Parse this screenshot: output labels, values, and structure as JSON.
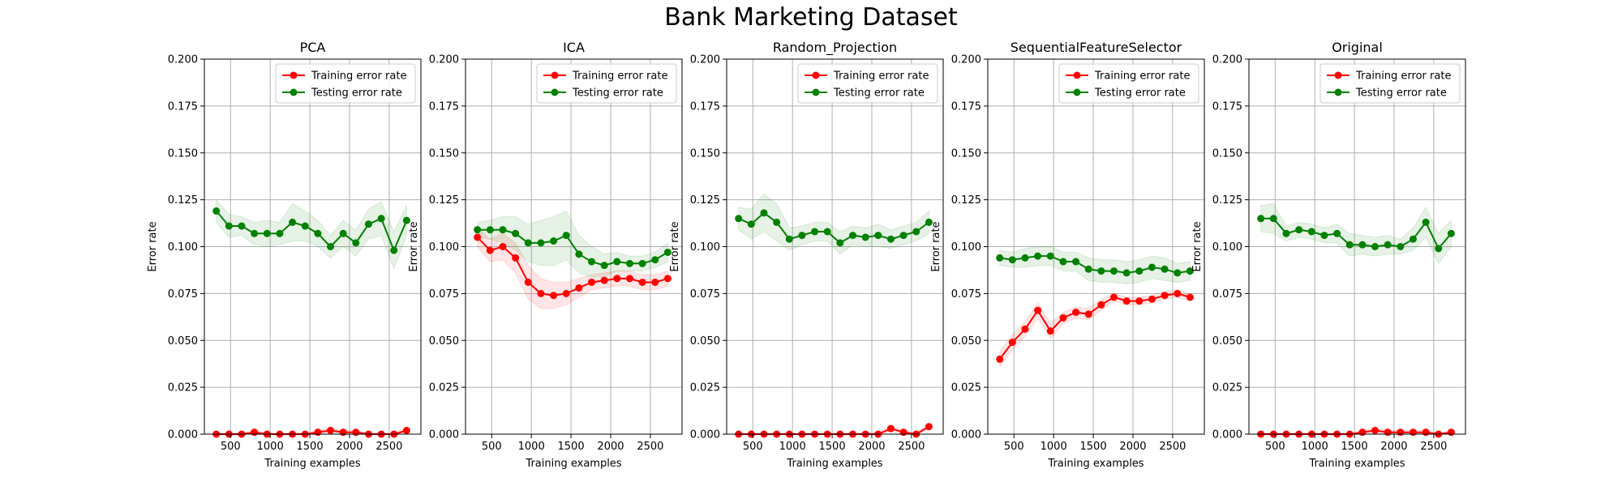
{
  "figure": {
    "title": "Bank Marketing Dataset"
  },
  "colors": {
    "train": "#ff0000",
    "test": "#008000",
    "grid": "#b0b0b0",
    "legend_border": "#cccccc"
  },
  "chart_data": [
    {
      "type": "line",
      "title": "PCA",
      "xlabel": "Training examples",
      "ylabel": "Error rate",
      "xlim": [
        170,
        2900
      ],
      "ylim": [
        0,
        0.2
      ],
      "xticks": [
        500,
        1000,
        1500,
        2000,
        2500
      ],
      "yticks": [
        0.0,
        0.025,
        0.05,
        0.075,
        0.1,
        0.125,
        0.15,
        0.175,
        0.2
      ],
      "ytick_labels": [
        "0.000",
        "0.025",
        "0.050",
        "0.075",
        "0.100",
        "0.125",
        "0.150",
        "0.175",
        "0.200"
      ],
      "grid": true,
      "legend": "upper right",
      "x": [
        320,
        480,
        640,
        800,
        960,
        1120,
        1280,
        1440,
        1600,
        1760,
        1920,
        2080,
        2240,
        2400,
        2560,
        2720
      ],
      "series": [
        {
          "name": "Training error rate",
          "color": "#ff0000",
          "values": [
            0.0,
            0.0,
            0.0,
            0.001,
            0.0,
            0.0,
            0.0,
            0.0,
            0.001,
            0.002,
            0.001,
            0.001,
            0.0,
            0.0,
            0.0,
            0.002
          ],
          "band": [
            0.0008,
            0.0008,
            0.0008,
            0.0012,
            0.0008,
            0.0008,
            0.0008,
            0.0008,
            0.001,
            0.0012,
            0.001,
            0.001,
            0.0008,
            0.0008,
            0.0008,
            0.0012
          ]
        },
        {
          "name": "Testing error rate",
          "color": "#008000",
          "values": [
            0.119,
            0.111,
            0.111,
            0.107,
            0.107,
            0.107,
            0.113,
            0.111,
            0.107,
            0.1,
            0.107,
            0.102,
            0.112,
            0.115,
            0.098,
            0.114
          ],
          "band": [
            0.006,
            0.006,
            0.005,
            0.006,
            0.007,
            0.006,
            0.01,
            0.008,
            0.007,
            0.006,
            0.007,
            0.007,
            0.008,
            0.009,
            0.01,
            0.008
          ]
        }
      ]
    },
    {
      "type": "line",
      "title": "ICA",
      "xlabel": "Training examples",
      "ylabel": "Error rate",
      "xlim": [
        170,
        2900
      ],
      "ylim": [
        0,
        0.2
      ],
      "xticks": [
        500,
        1000,
        1500,
        2000,
        2500
      ],
      "yticks": [
        0.0,
        0.025,
        0.05,
        0.075,
        0.1,
        0.125,
        0.15,
        0.175,
        0.2
      ],
      "ytick_labels": [
        "0.000",
        "0.025",
        "0.050",
        "0.075",
        "0.100",
        "0.125",
        "0.150",
        "0.175",
        "0.200"
      ],
      "grid": true,
      "legend": "upper right",
      "x": [
        320,
        480,
        640,
        800,
        960,
        1120,
        1280,
        1440,
        1600,
        1760,
        1920,
        2080,
        2240,
        2400,
        2560,
        2720
      ],
      "series": [
        {
          "name": "Training error rate",
          "color": "#ff0000",
          "values": [
            0.105,
            0.098,
            0.1,
            0.094,
            0.081,
            0.075,
            0.074,
            0.075,
            0.078,
            0.081,
            0.082,
            0.083,
            0.083,
            0.081,
            0.081,
            0.083
          ],
          "band": [
            0.005,
            0.006,
            0.007,
            0.008,
            0.009,
            0.008,
            0.007,
            0.006,
            0.005,
            0.004,
            0.004,
            0.004,
            0.004,
            0.004,
            0.004,
            0.004
          ]
        },
        {
          "name": "Testing error rate",
          "color": "#008000",
          "values": [
            0.109,
            0.109,
            0.109,
            0.107,
            0.102,
            0.102,
            0.103,
            0.106,
            0.096,
            0.092,
            0.09,
            0.092,
            0.091,
            0.091,
            0.093,
            0.097
          ],
          "band": [
            0.004,
            0.005,
            0.007,
            0.009,
            0.01,
            0.012,
            0.013,
            0.013,
            0.01,
            0.008,
            0.006,
            0.005,
            0.004,
            0.004,
            0.004,
            0.005
          ]
        }
      ]
    },
    {
      "type": "line",
      "title": "Random_Projection",
      "xlabel": "Training examples",
      "ylabel": "Error rate",
      "xlim": [
        170,
        2900
      ],
      "ylim": [
        0,
        0.2
      ],
      "xticks": [
        500,
        1000,
        1500,
        2000,
        2500
      ],
      "yticks": [
        0.0,
        0.025,
        0.05,
        0.075,
        0.1,
        0.125,
        0.15,
        0.175,
        0.2
      ],
      "ytick_labels": [
        "0.000",
        "0.025",
        "0.050",
        "0.075",
        "0.100",
        "0.125",
        "0.150",
        "0.175",
        "0.200"
      ],
      "grid": true,
      "legend": "upper right",
      "x": [
        320,
        480,
        640,
        800,
        960,
        1120,
        1280,
        1440,
        1600,
        1760,
        1920,
        2080,
        2240,
        2400,
        2560,
        2720
      ],
      "series": [
        {
          "name": "Training error rate",
          "color": "#ff0000",
          "values": [
            0.0,
            0.0,
            0.0,
            0.0,
            0.0,
            0.0,
            0.0,
            0.0,
            0.0,
            0.0,
            0.0,
            0.0,
            0.003,
            0.001,
            0.0,
            0.004
          ],
          "band": [
            0.0008,
            0.0008,
            0.0008,
            0.0008,
            0.0008,
            0.0008,
            0.0008,
            0.0008,
            0.0008,
            0.0008,
            0.0008,
            0.0008,
            0.0015,
            0.0008,
            0.0008,
            0.0015
          ]
        },
        {
          "name": "Testing error rate",
          "color": "#008000",
          "values": [
            0.115,
            0.112,
            0.118,
            0.113,
            0.104,
            0.106,
            0.108,
            0.108,
            0.102,
            0.106,
            0.105,
            0.106,
            0.104,
            0.106,
            0.108,
            0.113
          ],
          "band": [
            0.006,
            0.008,
            0.01,
            0.01,
            0.006,
            0.005,
            0.005,
            0.005,
            0.006,
            0.005,
            0.005,
            0.006,
            0.005,
            0.005,
            0.005,
            0.006
          ]
        }
      ]
    },
    {
      "type": "line",
      "title": "SequentialFeatureSelector",
      "xlabel": "Training examples",
      "ylabel": "Error rate",
      "xlim": [
        170,
        2900
      ],
      "ylim": [
        0,
        0.2
      ],
      "xticks": [
        500,
        1000,
        1500,
        2000,
        2500
      ],
      "yticks": [
        0.0,
        0.025,
        0.05,
        0.075,
        0.1,
        0.125,
        0.15,
        0.175,
        0.2
      ],
      "ytick_labels": [
        "0.000",
        "0.025",
        "0.050",
        "0.075",
        "0.100",
        "0.125",
        "0.150",
        "0.175",
        "0.200"
      ],
      "grid": true,
      "legend": "upper right",
      "x": [
        320,
        480,
        640,
        800,
        960,
        1120,
        1280,
        1440,
        1600,
        1760,
        1920,
        2080,
        2240,
        2400,
        2560,
        2720
      ],
      "series": [
        {
          "name": "Training error rate",
          "color": "#ff0000",
          "values": [
            0.04,
            0.049,
            0.056,
            0.066,
            0.055,
            0.062,
            0.065,
            0.064,
            0.069,
            0.073,
            0.071,
            0.071,
            0.072,
            0.074,
            0.075,
            0.073
          ],
          "band": [
            0.004,
            0.004,
            0.004,
            0.004,
            0.004,
            0.003,
            0.003,
            0.003,
            0.003,
            0.002,
            0.002,
            0.002,
            0.002,
            0.002,
            0.002,
            0.002
          ]
        },
        {
          "name": "Testing error rate",
          "color": "#008000",
          "values": [
            0.094,
            0.093,
            0.094,
            0.095,
            0.095,
            0.092,
            0.092,
            0.088,
            0.087,
            0.087,
            0.086,
            0.087,
            0.089,
            0.088,
            0.086,
            0.087
          ],
          "band": [
            0.004,
            0.004,
            0.005,
            0.005,
            0.005,
            0.005,
            0.005,
            0.006,
            0.006,
            0.006,
            0.006,
            0.006,
            0.006,
            0.006,
            0.005,
            0.005
          ]
        }
      ]
    },
    {
      "type": "line",
      "title": "Original",
      "xlabel": "Training examples",
      "ylabel": "Error rate",
      "xlim": [
        170,
        2900
      ],
      "ylim": [
        0,
        0.2
      ],
      "xticks": [
        500,
        1000,
        1500,
        2000,
        2500
      ],
      "yticks": [
        0.0,
        0.025,
        0.05,
        0.075,
        0.1,
        0.125,
        0.15,
        0.175,
        0.2
      ],
      "ytick_labels": [
        "0.000",
        "0.025",
        "0.050",
        "0.075",
        "0.100",
        "0.125",
        "0.150",
        "0.175",
        "0.200"
      ],
      "grid": true,
      "legend": "upper right",
      "x": [
        320,
        480,
        640,
        800,
        960,
        1120,
        1280,
        1440,
        1600,
        1760,
        1920,
        2080,
        2240,
        2400,
        2560,
        2720
      ],
      "series": [
        {
          "name": "Training error rate",
          "color": "#ff0000",
          "values": [
            0.0,
            0.0,
            0.0,
            0.0,
            0.0,
            0.0,
            0.0,
            0.0,
            0.001,
            0.002,
            0.001,
            0.001,
            0.001,
            0.001,
            0.0,
            0.001
          ],
          "band": [
            0.0008,
            0.0008,
            0.0008,
            0.0008,
            0.0008,
            0.0008,
            0.0008,
            0.0008,
            0.001,
            0.0012,
            0.001,
            0.001,
            0.001,
            0.001,
            0.0008,
            0.001
          ]
        },
        {
          "name": "Testing error rate",
          "color": "#008000",
          "values": [
            0.115,
            0.115,
            0.107,
            0.109,
            0.108,
            0.106,
            0.107,
            0.101,
            0.101,
            0.1,
            0.101,
            0.1,
            0.104,
            0.113,
            0.099,
            0.107
          ],
          "band": [
            0.007,
            0.008,
            0.004,
            0.004,
            0.004,
            0.004,
            0.005,
            0.006,
            0.005,
            0.005,
            0.005,
            0.004,
            0.006,
            0.008,
            0.008,
            0.007
          ]
        }
      ]
    }
  ]
}
